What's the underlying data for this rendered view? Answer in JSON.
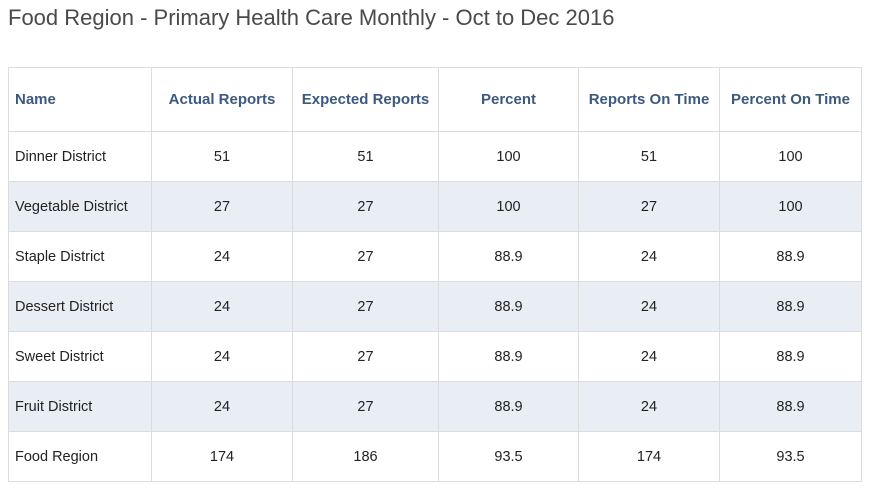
{
  "title": "Food Region - Primary Health Care Monthly - Oct to Dec 2016",
  "table": {
    "headers": [
      "Name",
      "Actual Reports",
      "Expected Reports",
      "Percent",
      "Reports On Time",
      "Percent On Time"
    ],
    "rows": [
      [
        "Dinner District",
        "51",
        "51",
        "100",
        "51",
        "100"
      ],
      [
        "Vegetable District",
        "27",
        "27",
        "100",
        "27",
        "100"
      ],
      [
        "Staple District",
        "24",
        "27",
        "88.9",
        "24",
        "88.9"
      ],
      [
        "Dessert District",
        "24",
        "27",
        "88.9",
        "24",
        "88.9"
      ],
      [
        "Sweet District",
        "24",
        "27",
        "88.9",
        "24",
        "88.9"
      ],
      [
        "Fruit District",
        "24",
        "27",
        "88.9",
        "24",
        "88.9"
      ],
      [
        "Food Region",
        "174",
        "186",
        "93.5",
        "174",
        "93.5"
      ]
    ]
  },
  "colors": {
    "header_text": "#3c5a7f",
    "stripe_row": "#e9eef5",
    "border": "#dcdcdc"
  }
}
